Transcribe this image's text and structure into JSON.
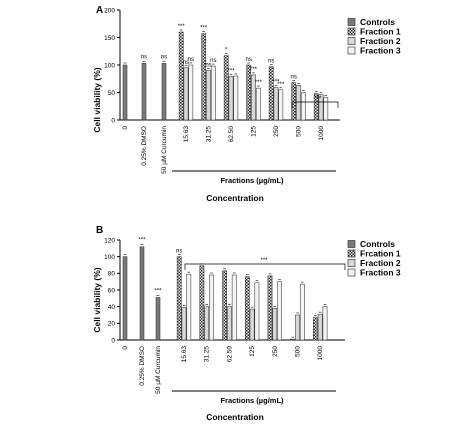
{
  "chart_data": [
    {
      "type": "bar",
      "panel": "A",
      "ylabel": "Cell viability (%)",
      "xlabel": "Concentration",
      "group_label": "Fractions (µg/mL)",
      "ylim": [
        0,
        200
      ],
      "yticks": [
        "0",
        "50",
        "100",
        "150",
        "200"
      ],
      "control_labels": [
        "0",
        "0.25% DMSO",
        "50 µM Curcumin"
      ],
      "control_values": [
        100,
        103,
        103
      ],
      "control_sig": [
        "",
        "ns",
        "ns"
      ],
      "categories": [
        "15.63",
        "31.25",
        "62.50",
        "125",
        "250",
        "500",
        "1000"
      ],
      "series": [
        {
          "name": "Fraction 1",
          "values": [
            160,
            157,
            117,
            100,
            97,
            68,
            48
          ]
        },
        {
          "name": "Fraction 2",
          "values": [
            95,
            90,
            79,
            82,
            59,
            63,
            46
          ]
        },
        {
          "name": "Fraction 3",
          "values": [
            100,
            98,
            80,
            58,
            55,
            50,
            41
          ]
        }
      ],
      "sig_labels": [
        [
          "***",
          "ns",
          "ns"
        ],
        [
          "***",
          "ns",
          "ns"
        ],
        [
          "*",
          "***",
          ""
        ],
        [
          "ns",
          "***",
          "***"
        ],
        [
          "ns",
          "***",
          "***"
        ],
        [
          "ns",
          "",
          ""
        ],
        [
          "",
          "",
          ""
        ]
      ],
      "bracket_label": "***",
      "legend": [
        "Controls",
        "Fraction 1",
        "Fraction 2",
        "Fraction 3"
      ],
      "legend_position": "top-right"
    },
    {
      "type": "bar",
      "panel": "B",
      "ylabel": "Cell viability (%)",
      "xlabel": "Concentration",
      "group_label": "Fractions (µg/mL)",
      "ylim": [
        0,
        120
      ],
      "yticks": [
        "0",
        "20",
        "40",
        "60",
        "80",
        "100",
        "120"
      ],
      "control_labels": [
        "0",
        "0.25% DMSO",
        "50 µM Curcumin"
      ],
      "control_values": [
        100,
        112,
        51
      ],
      "control_sig": [
        "",
        "***",
        "***"
      ],
      "categories": [
        "15.63",
        "31.25",
        "62.50",
        "125",
        "250",
        "500",
        "1000"
      ],
      "series": [
        {
          "name": "Frcation 1",
          "values": [
            100,
            89,
            83,
            76,
            77,
            1,
            27
          ]
        },
        {
          "name": "Fraction 2",
          "values": [
            39,
            40,
            40,
            37,
            38,
            30,
            31
          ]
        },
        {
          "name": "Fraction 3",
          "values": [
            79,
            78,
            78,
            69,
            70,
            67,
            40
          ]
        }
      ],
      "sig_labels": [
        [
          "ns",
          "",
          ""
        ],
        [
          "",
          "",
          ""
        ],
        [
          "",
          "",
          ""
        ],
        [
          "",
          "",
          ""
        ],
        [
          "",
          "",
          ""
        ],
        [
          "",
          "",
          ""
        ],
        [
          "",
          "",
          ""
        ]
      ],
      "bracket_label": "***",
      "legend": [
        "Controls",
        "Frcation 1",
        "Fraction 2",
        "Fraction 3"
      ],
      "legend_position": "top-right"
    }
  ]
}
